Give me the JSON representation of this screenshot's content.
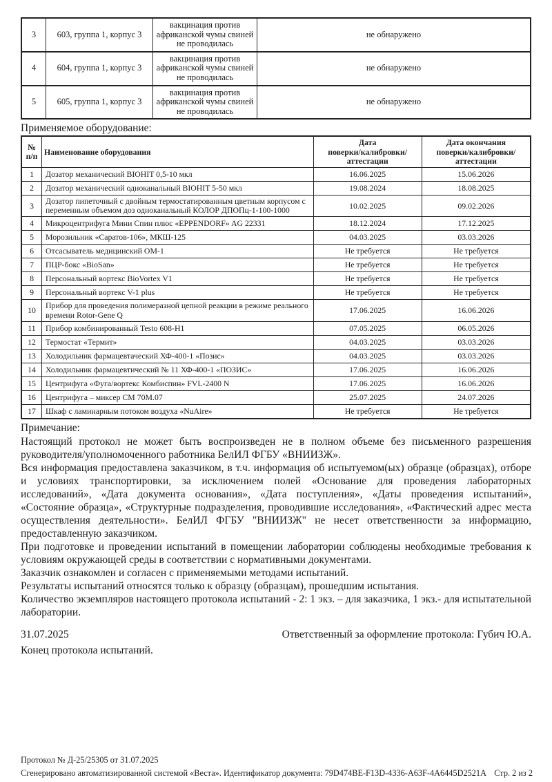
{
  "samples_table": {
    "rows": [
      {
        "num": "3",
        "sample": "603, группа 1, корпус 3",
        "vaccination": "вакцинация против африканской чумы свиней не проводилась",
        "result": "не обнаружено"
      },
      {
        "num": "4",
        "sample": "604, группа 1, корпус 3",
        "vaccination": "вакцинация против африканской чумы свиней не проводилась",
        "result": "не обнаружено"
      },
      {
        "num": "5",
        "sample": "605, группа 1, корпус 3",
        "vaccination": "вакцинация против африканской чумы свиней не проводилась",
        "result": "не обнаружено"
      }
    ]
  },
  "equipment": {
    "heading": "Применяемое оборудование:",
    "columns": [
      "№\nп/п",
      "Наименование оборудования",
      "Дата\nповерки/калибровки/аттестации",
      "Дата окончания\nповерки/калибровки/аттестации"
    ],
    "rows": [
      {
        "num": "1",
        "name": "Дозатор механический BIOHIT 0,5-10 мкл",
        "date": "16.06.2025",
        "end_date": "15.06.2026"
      },
      {
        "num": "2",
        "name": "Дозатор механический одноканальный BIOHIT 5-50 мкл",
        "date": "19.08.2024",
        "end_date": "18.08.2025"
      },
      {
        "num": "3",
        "name": "Дозатор пипеточный с двойным термостатированным цветным корпусом с переменным объемом доз одноканальный КОЛОР ДПОПц-1-100-1000",
        "date": "10.02.2025",
        "end_date": "09.02.2026"
      },
      {
        "num": "4",
        "name": "Микроцентрифуга Мини Спин плюс «EPPENDORF» AG 22331",
        "date": "18.12.2024",
        "end_date": "17.12.2025"
      },
      {
        "num": "5",
        "name": "Морозильник «Саратов-106», МКШ-125",
        "date": "04.03.2025",
        "end_date": "03.03.2026"
      },
      {
        "num": "6",
        "name": "Отсасыватель медицинский ОМ-1",
        "date": "Не требуется",
        "end_date": "Не требуется"
      },
      {
        "num": "7",
        "name": "ПЦР-бокс «BioSan»",
        "date": "Не требуется",
        "end_date": "Не требуется"
      },
      {
        "num": "8",
        "name": "Персональный вортекс BioVortex V1",
        "date": "Не требуется",
        "end_date": "Не требуется"
      },
      {
        "num": "9",
        "name": "Персональный вортекс V-1 plus",
        "date": "Не требуется",
        "end_date": "Не требуется"
      },
      {
        "num": "10",
        "name": "Прибор для проведения полимеразной цепной реакции в режиме реального времени Rotor-Gene Q",
        "date": "17.06.2025",
        "end_date": "16.06.2026"
      },
      {
        "num": "11",
        "name": "Прибор комбинированный Testo 608-H1",
        "date": "07.05.2025",
        "end_date": "06.05.2026"
      },
      {
        "num": "12",
        "name": "Термостат «Термит»",
        "date": "04.03.2025",
        "end_date": "03.03.2026"
      },
      {
        "num": "13",
        "name": "Холодильник фармацевтаческий ХФ-400-1 «Позис»",
        "date": "04.03.2025",
        "end_date": "03.03.2026"
      },
      {
        "num": "14",
        "name": "Холодильник фармацевтический № 11 ХФ-400-1 «ПОЗИС»",
        "date": "17.06.2025",
        "end_date": "16.06.2026"
      },
      {
        "num": "15",
        "name": "Центрифуга «Фуга/вортекс Комбиспин» FVL-2400 N",
        "date": "17.06.2025",
        "end_date": "16.06.2026"
      },
      {
        "num": "16",
        "name": "Центрифуга – миксер СМ 70М.07",
        "date": "25.07.2025",
        "end_date": "24.07.2026"
      },
      {
        "num": "17",
        "name": "Шкаф с ламинарным потоком воздуха «NuAire»",
        "date": "Не требуется",
        "end_date": "Не требуется"
      }
    ]
  },
  "notes": {
    "heading": "Примечание:",
    "paragraphs": [
      "Настоящий протокол не может быть воспроизведен не в полном объеме без письменного разрешения руководителя/уполномоченного работника БелИЛ ФГБУ «ВНИИЗЖ».",
      "Вся информация предоставлена заказчиком, в т.ч. информация об испытуемом(ых) образце (образцах), отборе и условиях транспортировки, за исключением полей «Основание для проведения лабораторных исследований», «Дата документа основания», «Дата поступления», «Даты проведения испытаний», «Состояние образца», «Структурные подразделения, проводившие исследования», «Фактический адрес места осуществления деятельности». БелИЛ ФГБУ \"ВНИИЗЖ\" не несет ответственности за информацию, предоставленную заказчиком.",
      "При подготовке и проведении испытаний в помещении лаборатории соблюдены необходимые требования к условиям окружающей среды в соответствии с нормативными документами.",
      "Заказчик ознакомлен и согласен с применяемыми методами испытаний.",
      "Результаты испытаний относятся только к образцу (образцам), прошедшим испытания.",
      "Количество экземпляров настоящего протокола испытаний - 2: 1 экз. – для заказчика, 1 экз.- для испытательной лаборатории."
    ]
  },
  "signoff": {
    "date": "31.07.2025",
    "responsible": "Ответственный за оформление протокола: Губич Ю.А.",
    "end_line": "Конец протокола испытаний."
  },
  "footer": {
    "protocol_line": "Протокол № Д-25/25305 от 31.07.2025",
    "generated_line": "Сгенерировано автоматизированной системой «Веста». Идентификатор документа: 79D474BE-F13D-4336-A63F-4A6445D2521A",
    "page_info": "Стр. 2 из 2"
  }
}
